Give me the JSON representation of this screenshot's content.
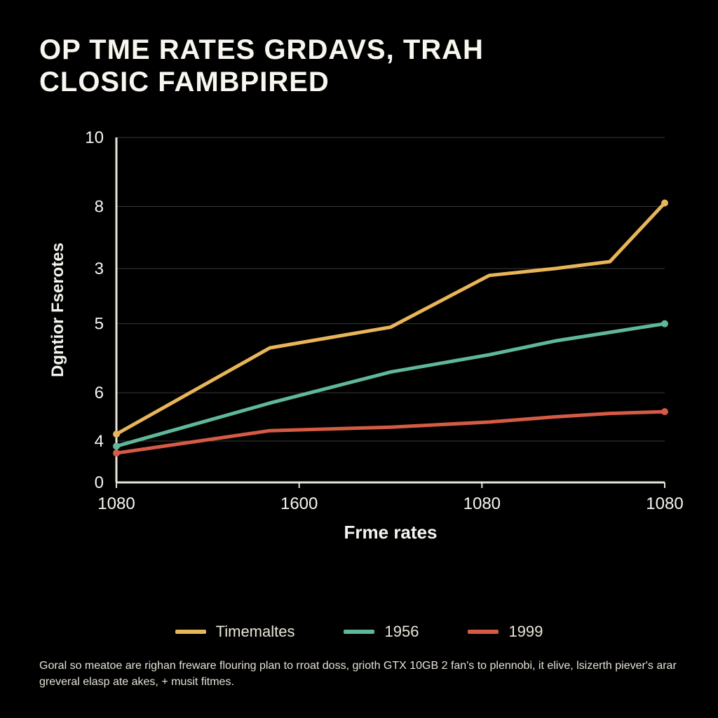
{
  "title_line1": "OP TME RATES GRDAVS, TRAH",
  "title_line2": "CLOSIC FAMBPIRED",
  "chart": {
    "type": "line",
    "background_color": "#000000",
    "text_color": "#f5f5f0",
    "title_fontsize": 40,
    "label_fontsize": 24,
    "tick_fontsize": 24,
    "axis_color": "#e9e5d8",
    "grid_color": "#3a3a36",
    "line_width": 5,
    "marker_radius": 5,
    "x_label": "Frme rates",
    "y_label": "Dgntior Fserotes",
    "x_ticks": [
      "1080",
      "1600",
      "1080",
      "1080"
    ],
    "y_ticks_visual": [
      "0",
      "4",
      "6",
      "5",
      "3",
      "8",
      "10"
    ],
    "y_tick_positions": [
      0,
      1.2,
      2.6,
      4.6,
      6.2,
      8.0,
      10.0
    ],
    "ylim": [
      0,
      10
    ],
    "series": [
      {
        "name": "Timemaltes",
        "color": "#e8b558",
        "x": [
          0,
          0.28,
          0.5,
          0.68,
          0.8,
          0.9,
          1.0
        ],
        "y": [
          1.4,
          3.9,
          4.5,
          6.0,
          6.2,
          6.4,
          8.1
        ],
        "markers_at": [
          0,
          6
        ]
      },
      {
        "name": "1956",
        "color": "#5fb89a",
        "x": [
          0,
          0.28,
          0.5,
          0.68,
          0.8,
          1.0
        ],
        "y": [
          1.05,
          2.3,
          3.2,
          3.7,
          4.1,
          4.6
        ],
        "markers_at": [
          0,
          5
        ]
      },
      {
        "name": "1999",
        "color": "#d65b45",
        "x": [
          0,
          0.28,
          0.5,
          0.68,
          0.8,
          0.9,
          1.0
        ],
        "y": [
          0.85,
          1.5,
          1.6,
          1.75,
          1.9,
          2.0,
          2.05
        ],
        "markers_at": [
          0,
          6
        ]
      }
    ]
  },
  "legend": [
    {
      "label": "Timemaltes",
      "color": "#e8b558"
    },
    {
      "label": "1956",
      "color": "#5fb89a"
    },
    {
      "label": "1999",
      "color": "#d65b45"
    }
  ],
  "footnote": "Goral so meatoe are righan freware flouring plan to rroat doss, grioth GTX 10GB 2 fan's to plennobi, it elive, lsizerth piever's arar greveral elasp ate akes, + musit fitmes."
}
